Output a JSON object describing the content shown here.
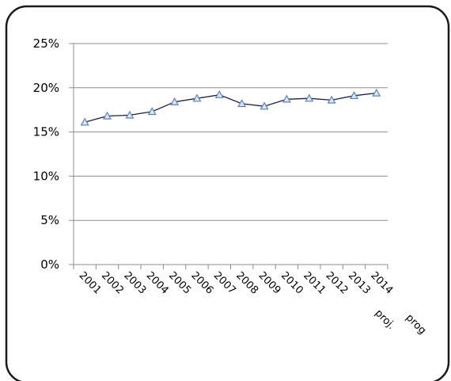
{
  "chart_data": {
    "type": "line",
    "categories": [
      "2001",
      "2002",
      "2003",
      "2004",
      "2005",
      "2006",
      "2007",
      "2008",
      "2009",
      "2010",
      "2011",
      "2012",
      "2013",
      "2014"
    ],
    "category_extra_labels": {
      "13": "proj."
    },
    "trailing_label": "prog",
    "values": [
      16.1,
      16.8,
      16.9,
      17.3,
      18.4,
      18.8,
      19.2,
      18.2,
      17.9,
      18.7,
      18.8,
      18.6,
      19.1,
      19.4
    ],
    "y_ticks": [
      "0%",
      "5%",
      "10%",
      "15%",
      "20%",
      "25%"
    ],
    "ylim": [
      0,
      25
    ],
    "grid": "horizontal",
    "marker": "triangle",
    "colors": {
      "line": "#1f1f3a",
      "marker_fill": "#dde7f3",
      "marker_stroke": "#5b82b8",
      "grid": "#8c8c8c",
      "frame": "#1a1a1a"
    },
    "title": "",
    "xlabel": "",
    "ylabel": ""
  }
}
